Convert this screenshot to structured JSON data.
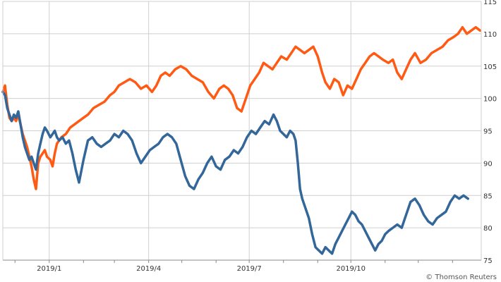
{
  "chart_data": {
    "type": "line",
    "title": "",
    "xlabel": "",
    "ylabel": "",
    "ylim": [
      75,
      115
    ],
    "y_ticks": [
      75,
      80,
      85,
      90,
      95,
      100,
      105,
      110,
      115
    ],
    "y_axis_side": "right",
    "x_ticks": [
      "2019/1",
      "2019/4",
      "2019/7",
      "2019/10"
    ],
    "grid": true,
    "credit": "© Thomson Reuters",
    "series": [
      {
        "color": "#ff5a14",
        "points": [
          [
            "2018-11-20",
            101.0
          ],
          [
            "2018-11-22",
            102.0
          ],
          [
            "2018-11-24",
            99.0
          ],
          [
            "2018-11-26",
            97.0
          ],
          [
            "2018-11-28",
            96.5
          ],
          [
            "2018-11-30",
            97.0
          ],
          [
            "2018-12-02",
            96.5
          ],
          [
            "2018-12-04",
            97.5
          ],
          [
            "2018-12-06",
            96.0
          ],
          [
            "2018-12-08",
            94.5
          ],
          [
            "2018-12-10",
            93.5
          ],
          [
            "2018-12-12",
            92.5
          ],
          [
            "2018-12-14",
            91.0
          ],
          [
            "2018-12-16",
            89.5
          ],
          [
            "2018-12-18",
            87.5
          ],
          [
            "2018-12-20",
            86.0
          ],
          [
            "2018-12-22",
            90.0
          ],
          [
            "2018-12-24",
            91.0
          ],
          [
            "2018-12-26",
            91.5
          ],
          [
            "2018-12-28",
            92.0
          ],
          [
            "2018-12-30",
            91.0
          ],
          [
            "2019-01-02",
            90.5
          ],
          [
            "2019-01-04",
            89.5
          ],
          [
            "2019-01-06",
            91.5
          ],
          [
            "2019-01-08",
            93.0
          ],
          [
            "2019-01-12",
            94.0
          ],
          [
            "2019-01-16",
            94.5
          ],
          [
            "2019-01-20",
            95.5
          ],
          [
            "2019-01-24",
            96.0
          ],
          [
            "2019-01-28",
            96.5
          ],
          [
            "2019-02-01",
            97.0
          ],
          [
            "2019-02-05",
            97.5
          ],
          [
            "2019-02-10",
            98.5
          ],
          [
            "2019-02-15",
            99.0
          ],
          [
            "2019-02-20",
            99.5
          ],
          [
            "2019-02-25",
            100.5
          ],
          [
            "2019-03-01",
            101.0
          ],
          [
            "2019-03-05",
            102.0
          ],
          [
            "2019-03-10",
            102.5
          ],
          [
            "2019-03-15",
            103.0
          ],
          [
            "2019-03-20",
            102.5
          ],
          [
            "2019-03-25",
            101.5
          ],
          [
            "2019-03-30",
            102.0
          ],
          [
            "2019-04-04",
            101.0
          ],
          [
            "2019-04-08",
            102.0
          ],
          [
            "2019-04-12",
            103.5
          ],
          [
            "2019-04-16",
            104.0
          ],
          [
            "2019-04-20",
            103.5
          ],
          [
            "2019-04-25",
            104.5
          ],
          [
            "2019-04-30",
            105.0
          ],
          [
            "2019-05-05",
            104.5
          ],
          [
            "2019-05-10",
            103.5
          ],
          [
            "2019-05-15",
            103.0
          ],
          [
            "2019-05-20",
            102.5
          ],
          [
            "2019-05-25",
            101.0
          ],
          [
            "2019-05-30",
            100.0
          ],
          [
            "2019-06-04",
            101.5
          ],
          [
            "2019-06-08",
            102.0
          ],
          [
            "2019-06-12",
            101.5
          ],
          [
            "2019-06-16",
            100.5
          ],
          [
            "2019-06-20",
            98.5
          ],
          [
            "2019-06-24",
            98.0
          ],
          [
            "2019-06-28",
            100.0
          ],
          [
            "2019-07-02",
            102.0
          ],
          [
            "2019-07-06",
            103.0
          ],
          [
            "2019-07-10",
            104.0
          ],
          [
            "2019-07-14",
            105.5
          ],
          [
            "2019-07-18",
            105.0
          ],
          [
            "2019-07-22",
            104.5
          ],
          [
            "2019-07-26",
            105.5
          ],
          [
            "2019-07-30",
            106.5
          ],
          [
            "2019-08-04",
            106.0
          ],
          [
            "2019-08-08",
            107.0
          ],
          [
            "2019-08-12",
            108.0
          ],
          [
            "2019-08-16",
            107.5
          ],
          [
            "2019-08-20",
            107.0
          ],
          [
            "2019-08-24",
            107.5
          ],
          [
            "2019-08-28",
            108.0
          ],
          [
            "2019-09-01",
            106.5
          ],
          [
            "2019-09-05",
            104.0
          ],
          [
            "2019-09-08",
            102.5
          ],
          [
            "2019-09-12",
            101.5
          ],
          [
            "2019-09-16",
            103.0
          ],
          [
            "2019-09-20",
            102.5
          ],
          [
            "2019-09-24",
            100.5
          ],
          [
            "2019-09-28",
            102.0
          ],
          [
            "2019-10-02",
            101.5
          ],
          [
            "2019-10-06",
            103.0
          ],
          [
            "2019-10-10",
            104.5
          ],
          [
            "2019-10-14",
            105.5
          ],
          [
            "2019-10-18",
            106.5
          ],
          [
            "2019-10-22",
            107.0
          ],
          [
            "2019-10-26",
            106.5
          ],
          [
            "2019-10-30",
            106.0
          ],
          [
            "2019-11-04",
            105.5
          ],
          [
            "2019-11-08",
            106.0
          ],
          [
            "2019-11-12",
            104.0
          ],
          [
            "2019-11-16",
            103.0
          ],
          [
            "2019-11-20",
            104.5
          ],
          [
            "2019-11-24",
            106.0
          ],
          [
            "2019-11-28",
            107.0
          ],
          [
            "2019-12-03",
            105.5
          ],
          [
            "2019-12-08",
            106.0
          ],
          [
            "2019-12-13",
            107.0
          ],
          [
            "2019-12-18",
            107.5
          ],
          [
            "2019-12-23",
            108.0
          ],
          [
            "2019-12-28",
            109.0
          ],
          [
            "2020-01-02",
            109.5
          ],
          [
            "2020-01-06",
            110.0
          ],
          [
            "2020-01-10",
            111.0
          ],
          [
            "2020-01-14",
            110.0
          ],
          [
            "2020-01-18",
            110.5
          ],
          [
            "2020-01-22",
            111.0
          ],
          [
            "2020-01-26",
            110.5
          ]
        ]
      },
      {
        "color": "#336699",
        "points": [
          [
            "2018-11-20",
            101.0
          ],
          [
            "2018-11-22",
            100.5
          ],
          [
            "2018-11-24",
            98.5
          ],
          [
            "2018-11-26",
            97.5
          ],
          [
            "2018-11-28",
            96.5
          ],
          [
            "2018-11-30",
            97.5
          ],
          [
            "2018-12-02",
            97.0
          ],
          [
            "2018-12-04",
            98.0
          ],
          [
            "2018-12-06",
            96.0
          ],
          [
            "2018-12-08",
            94.0
          ],
          [
            "2018-12-10",
            92.5
          ],
          [
            "2018-12-12",
            91.5
          ],
          [
            "2018-12-14",
            90.5
          ],
          [
            "2018-12-16",
            91.0
          ],
          [
            "2018-12-18",
            90.0
          ],
          [
            "2018-12-20",
            89.0
          ],
          [
            "2018-12-22",
            91.5
          ],
          [
            "2018-12-24",
            93.0
          ],
          [
            "2018-12-26",
            94.5
          ],
          [
            "2018-12-28",
            95.5
          ],
          [
            "2018-12-30",
            95.0
          ],
          [
            "2019-01-02",
            94.0
          ],
          [
            "2019-01-04",
            94.5
          ],
          [
            "2019-01-06",
            95.0
          ],
          [
            "2019-01-08",
            94.0
          ],
          [
            "2019-01-10",
            93.5
          ],
          [
            "2019-01-13",
            94.0
          ],
          [
            "2019-01-16",
            93.0
          ],
          [
            "2019-01-19",
            93.5
          ],
          [
            "2019-01-22",
            91.5
          ],
          [
            "2019-01-25",
            89.0
          ],
          [
            "2019-01-28",
            87.0
          ],
          [
            "2019-02-01",
            90.5
          ],
          [
            "2019-02-05",
            93.5
          ],
          [
            "2019-02-09",
            94.0
          ],
          [
            "2019-02-13",
            93.0
          ],
          [
            "2019-02-17",
            92.5
          ],
          [
            "2019-02-21",
            93.0
          ],
          [
            "2019-02-25",
            93.5
          ],
          [
            "2019-03-01",
            94.5
          ],
          [
            "2019-03-05",
            94.0
          ],
          [
            "2019-03-09",
            95.0
          ],
          [
            "2019-03-13",
            94.5
          ],
          [
            "2019-03-17",
            93.5
          ],
          [
            "2019-03-21",
            91.5
          ],
          [
            "2019-03-25",
            90.0
          ],
          [
            "2019-03-29",
            91.0
          ],
          [
            "2019-04-02",
            92.0
          ],
          [
            "2019-04-06",
            92.5
          ],
          [
            "2019-04-10",
            93.0
          ],
          [
            "2019-04-14",
            94.0
          ],
          [
            "2019-04-18",
            94.5
          ],
          [
            "2019-04-22",
            94.0
          ],
          [
            "2019-04-26",
            93.0
          ],
          [
            "2019-04-30",
            90.5
          ],
          [
            "2019-05-04",
            88.0
          ],
          [
            "2019-05-08",
            86.5
          ],
          [
            "2019-05-12",
            86.0
          ],
          [
            "2019-05-16",
            87.5
          ],
          [
            "2019-05-20",
            88.5
          ],
          [
            "2019-05-24",
            90.0
          ],
          [
            "2019-05-28",
            91.0
          ],
          [
            "2019-06-01",
            89.5
          ],
          [
            "2019-06-05",
            89.0
          ],
          [
            "2019-06-09",
            90.5
          ],
          [
            "2019-06-13",
            91.0
          ],
          [
            "2019-06-17",
            92.0
          ],
          [
            "2019-06-21",
            91.5
          ],
          [
            "2019-06-25",
            92.5
          ],
          [
            "2019-06-29",
            94.0
          ],
          [
            "2019-07-03",
            95.0
          ],
          [
            "2019-07-07",
            94.5
          ],
          [
            "2019-07-11",
            95.5
          ],
          [
            "2019-07-15",
            96.5
          ],
          [
            "2019-07-19",
            96.0
          ],
          [
            "2019-07-23",
            97.5
          ],
          [
            "2019-07-26",
            96.5
          ],
          [
            "2019-07-29",
            95.0
          ],
          [
            "2019-08-01",
            94.5
          ],
          [
            "2019-08-04",
            94.0
          ],
          [
            "2019-08-07",
            95.0
          ],
          [
            "2019-08-10",
            94.5
          ],
          [
            "2019-08-12",
            93.5
          ],
          [
            "2019-08-14",
            90.0
          ],
          [
            "2019-08-16",
            86.0
          ],
          [
            "2019-08-18",
            84.5
          ],
          [
            "2019-08-21",
            83.0
          ],
          [
            "2019-08-24",
            81.5
          ],
          [
            "2019-08-27",
            79.0
          ],
          [
            "2019-08-30",
            77.0
          ],
          [
            "2019-09-02",
            76.5
          ],
          [
            "2019-09-05",
            76.0
          ],
          [
            "2019-09-08",
            77.0
          ],
          [
            "2019-09-11",
            76.5
          ],
          [
            "2019-09-14",
            76.0
          ],
          [
            "2019-09-17",
            77.5
          ],
          [
            "2019-09-20",
            78.5
          ],
          [
            "2019-09-23",
            79.5
          ],
          [
            "2019-09-26",
            80.5
          ],
          [
            "2019-09-29",
            81.5
          ],
          [
            "2019-10-02",
            82.5
          ],
          [
            "2019-10-05",
            82.0
          ],
          [
            "2019-10-08",
            81.0
          ],
          [
            "2019-10-11",
            80.5
          ],
          [
            "2019-10-14",
            79.5
          ],
          [
            "2019-10-17",
            78.5
          ],
          [
            "2019-10-20",
            77.5
          ],
          [
            "2019-10-23",
            76.5
          ],
          [
            "2019-10-26",
            77.5
          ],
          [
            "2019-10-29",
            78.0
          ],
          [
            "2019-11-01",
            79.0
          ],
          [
            "2019-11-04",
            79.5
          ],
          [
            "2019-11-08",
            80.0
          ],
          [
            "2019-11-12",
            80.5
          ],
          [
            "2019-11-16",
            80.0
          ],
          [
            "2019-11-20",
            82.0
          ],
          [
            "2019-11-24",
            84.0
          ],
          [
            "2019-11-28",
            84.5
          ],
          [
            "2019-12-02",
            83.5
          ],
          [
            "2019-12-06",
            82.0
          ],
          [
            "2019-12-10",
            81.0
          ],
          [
            "2019-12-14",
            80.5
          ],
          [
            "2019-12-18",
            81.5
          ],
          [
            "2019-12-22",
            82.0
          ],
          [
            "2019-12-26",
            82.5
          ],
          [
            "2019-12-30",
            84.0
          ],
          [
            "2020-01-03",
            85.0
          ],
          [
            "2020-01-07",
            84.5
          ],
          [
            "2020-01-11",
            85.0
          ],
          [
            "2020-01-15",
            84.5
          ]
        ]
      }
    ]
  }
}
